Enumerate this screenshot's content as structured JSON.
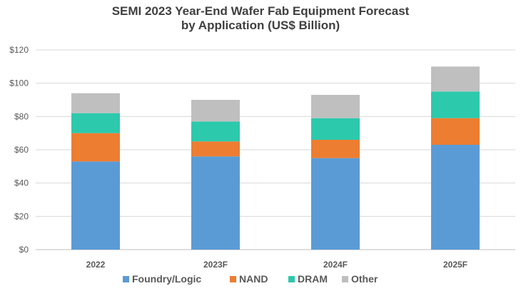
{
  "chart_data": {
    "type": "bar",
    "stacked": true,
    "title": "SEMI 2023 Year-End Wafer Fab Equipment Forecast",
    "subtitle": "by Application (US$ Billion)",
    "categories": [
      "2022",
      "2023F",
      "2024F",
      "2025F"
    ],
    "series": [
      {
        "name": "Foundry/Logic",
        "color": "#5B9BD5",
        "values": [
          53,
          56,
          55,
          63
        ]
      },
      {
        "name": "NAND",
        "color": "#ED7D31",
        "values": [
          17,
          9,
          11,
          16
        ]
      },
      {
        "name": "DRAM",
        "color": "#2CC9AC",
        "values": [
          12,
          12,
          13,
          16
        ]
      },
      {
        "name": "Other",
        "color": "#BFBFBF",
        "values": [
          12,
          13,
          14,
          15
        ]
      }
    ],
    "ylim": [
      0,
      120
    ],
    "yticks": [
      0,
      20,
      40,
      60,
      80,
      100,
      120
    ],
    "ytick_labels": [
      "$0",
      "$20",
      "$40",
      "$60",
      "$80",
      "$100",
      "$120"
    ],
    "grid": true,
    "legend_position": "bottom"
  }
}
